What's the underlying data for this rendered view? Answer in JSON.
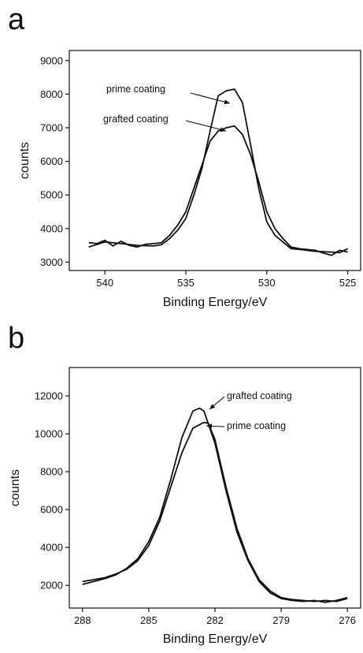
{
  "chart_data": [
    {
      "panel": "a",
      "type": "line",
      "xlabel": "Binding Energy/eV",
      "ylabel": "counts",
      "xlim": [
        542.2,
        524.2
      ],
      "ylim": [
        2750,
        9300
      ],
      "xticks": [
        540,
        535,
        530,
        525
      ],
      "yticks": [
        3000,
        4000,
        5000,
        6000,
        7000,
        8000,
        9000
      ],
      "series": [
        {
          "name": "prime coating",
          "x": [
            541,
            540,
            539,
            538,
            537,
            536.5,
            536,
            535.5,
            535,
            534.5,
            534,
            533.5,
            533,
            532.5,
            532,
            531.5,
            531,
            530.5,
            530,
            529.5,
            529,
            528.5,
            528,
            527,
            526,
            525.5,
            525
          ],
          "y": [
            3450,
            3600,
            3550,
            3500,
            3480,
            3520,
            3700,
            3950,
            4300,
            5000,
            5800,
            6900,
            7950,
            8100,
            8150,
            7750,
            6500,
            5200,
            4200,
            3800,
            3600,
            3400,
            3380,
            3320,
            3300,
            3280,
            3400
          ]
        },
        {
          "name": "grafted coating",
          "x": [
            541,
            540.5,
            540,
            539.5,
            539,
            538.5,
            538,
            537.5,
            537,
            536.5,
            536,
            535.5,
            535,
            534.5,
            534,
            533.5,
            533,
            532.5,
            532,
            531.5,
            531,
            530.5,
            530,
            529.5,
            529,
            528.5,
            528,
            527,
            526.5,
            526,
            525.5,
            525
          ],
          "y": [
            3580,
            3550,
            3650,
            3480,
            3620,
            3500,
            3450,
            3530,
            3550,
            3580,
            3800,
            4100,
            4500,
            5200,
            5900,
            6600,
            6900,
            7000,
            7050,
            6800,
            6200,
            5400,
            4500,
            4000,
            3700,
            3450,
            3400,
            3350,
            3270,
            3200,
            3350,
            3300
          ]
        }
      ],
      "annotations": [
        "prime coating",
        "grafted coating"
      ]
    },
    {
      "panel": "b",
      "type": "line",
      "xlabel": "Binding Energy/eV",
      "ylabel": "counts",
      "xlim": [
        288.6,
        275.4
      ],
      "ylim": [
        800,
        13500
      ],
      "xticks": [
        288,
        285,
        282,
        279,
        276
      ],
      "yticks": [
        2000,
        4000,
        6000,
        8000,
        10000,
        12000
      ],
      "series": [
        {
          "name": "grafted coating",
          "x": [
            288,
            287.5,
            287,
            286.5,
            286,
            285.5,
            285,
            284.5,
            284,
            283.5,
            283,
            282.7,
            282.5,
            282,
            281.5,
            281,
            280.5,
            280,
            279.5,
            279,
            278.5,
            278,
            277.5,
            277,
            276.5,
            276
          ],
          "y": [
            2050,
            2200,
            2350,
            2550,
            2900,
            3400,
            4300,
            5600,
            7600,
            9800,
            11200,
            11350,
            11200,
            9500,
            7000,
            4800,
            3300,
            2200,
            1600,
            1300,
            1200,
            1150,
            1200,
            1100,
            1200,
            1350
          ]
        },
        {
          "name": "prime coating",
          "x": [
            288,
            287.5,
            287,
            286.5,
            286,
            285.5,
            285,
            284.5,
            284,
            283.5,
            283,
            282.5,
            282.3,
            282,
            281.5,
            281,
            280.5,
            280,
            279.5,
            279,
            278.5,
            278,
            277.5,
            277,
            276.5,
            276
          ],
          "y": [
            2200,
            2300,
            2400,
            2600,
            2850,
            3300,
            4100,
            5400,
            7200,
            9000,
            10300,
            10600,
            10550,
            9700,
            7200,
            5000,
            3400,
            2300,
            1700,
            1350,
            1250,
            1200,
            1150,
            1200,
            1150,
            1300
          ]
        }
      ],
      "annotations": [
        "grafted coating",
        "prime coating"
      ]
    }
  ],
  "panels": {
    "a": "a",
    "b": "b"
  }
}
